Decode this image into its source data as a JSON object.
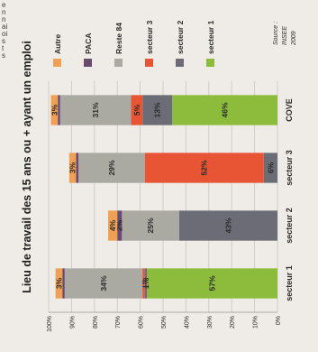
{
  "page": {
    "left_text_fragments": [
      "e",
      "n",
      "n",
      "ai",
      "oi",
      "s",
      "t",
      "s"
    ]
  },
  "chart_data": {
    "type": "bar",
    "stacked": true,
    "percent": true,
    "title": "Lieu de travail des 15 ans ou + ayant un emploi",
    "categories": [
      "secteur 1",
      "secteur 2",
      "secteur 3",
      "COVE"
    ],
    "ylim": [
      0,
      100
    ],
    "y_ticks": [
      "0%",
      "10%",
      "20%",
      "30%",
      "40%",
      "50%",
      "60%",
      "70%",
      "80%",
      "90%",
      "100%"
    ],
    "grid": true,
    "legend_position": "right",
    "series": [
      {
        "name": "secteur 1",
        "values": [
          57,
          0,
          0,
          46
        ],
        "labels": [
          "57%",
          "",
          "",
          "46%"
        ],
        "color": "#8dbb3c"
      },
      {
        "name": "secteur 2",
        "values": [
          1,
          43,
          6,
          13
        ],
        "labels": [
          "1%",
          "43%",
          "6%",
          "13%"
        ],
        "color": "#6c6c76"
      },
      {
        "name": "secteur 3",
        "values": [
          1,
          0,
          52,
          5
        ],
        "labels": [
          "1%",
          "",
          "52%",
          "5%"
        ],
        "color": "#e85535"
      },
      {
        "name": "Reste 84",
        "values": [
          34,
          25,
          29,
          31
        ],
        "labels": [
          "34%",
          "25%",
          "29%",
          "31%"
        ],
        "color": "#aaa9a2"
      },
      {
        "name": "PACA",
        "values": [
          1,
          2,
          1,
          1
        ],
        "labels": [
          "",
          "2%",
          "",
          ""
        ],
        "color": "#6a4a6e"
      },
      {
        "name": "Autre",
        "values": [
          3,
          4,
          3,
          3
        ],
        "labels": [
          "3%",
          "4%",
          "3%",
          "3%"
        ],
        "color": "#f0a055"
      }
    ],
    "source": [
      "Source :",
      "INSEE",
      "2009"
    ],
    "colors": {
      "background": "#efebe6",
      "grid": "#c9c6bf",
      "text": "#2b2b2b"
    }
  }
}
